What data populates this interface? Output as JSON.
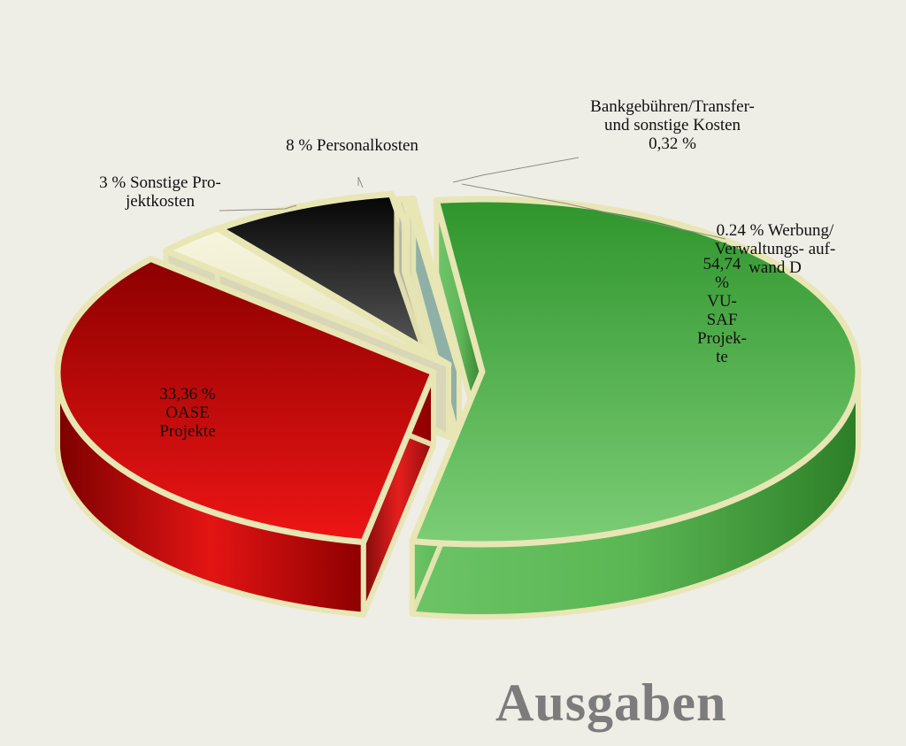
{
  "title": "Ausgaben",
  "chart_data": {
    "type": "pie",
    "title": "Ausgaben",
    "slices": [
      {
        "value": 54.74,
        "color": "#4fb94a",
        "label_lines": [
          "54,74",
          "%",
          "VU-",
          "SAF",
          "Projek-",
          "te"
        ]
      },
      {
        "value": 33.36,
        "color": "#c00c0c",
        "label_lines": [
          "33,36 %",
          "OASE",
          "Projekte"
        ]
      },
      {
        "value": 3,
        "color": "#f2f0cf",
        "label_lines": [
          "3 % Sonstige Pro-",
          "jektkosten"
        ]
      },
      {
        "value": 8,
        "color": "#262626",
        "label_lines": [
          "8 % Personalkosten"
        ]
      },
      {
        "value": 0.32,
        "color": "#d2d0c2",
        "label_lines": [
          "Bankgebühren/Transfer-",
          "und sonstige Kosten",
          "0,32 %"
        ]
      },
      {
        "value": 0.24,
        "color": "#a9cbc0",
        "label_lines": [
          "0.24 % Werbung/",
          "Verwaltungs- auf-",
          "wand D"
        ]
      }
    ]
  }
}
